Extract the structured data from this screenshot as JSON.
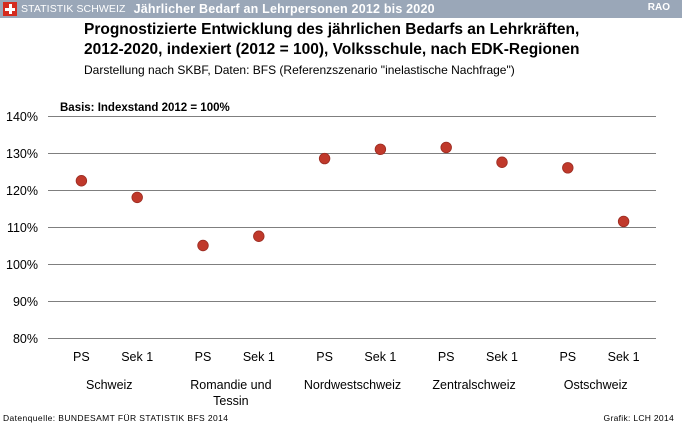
{
  "header": {
    "brand": "STATISTIK SCHWEIZ",
    "bar_title": "Jährlicher Bedarf an Lehrpersonen 2012 bis 2020",
    "code": "RAO",
    "flag_icon": "swiss-cross-icon",
    "bar_color": "#9aa7b8"
  },
  "footer": {
    "source": "Datenquelle: BUNDESAMT FÜR STATISTIK BFS 2014",
    "credit": "Grafik: LCH 2014"
  },
  "chart_data": {
    "type": "scatter",
    "title_lines": [
      "Prognostizierte Entwicklung des jährlichen Bedarfs an Lehrkräften,",
      "2012-2020, indexiert (2012 = 100), Volksschule, nach EDK-Regionen"
    ],
    "subtitle": "Darstellung nach SKBF, Daten: BFS (Referenzszenario  \"inelastische Nachfrage\")",
    "annotation": "Basis: Indexstand 2012 = 100%",
    "categories": [
      "PS",
      "Sek 1",
      "PS",
      "Sek 1",
      "PS",
      "Sek 1",
      "PS",
      "Sek 1",
      "PS",
      "Sek 1"
    ],
    "groups": [
      {
        "label_lines": [
          "Schweiz"
        ]
      },
      {
        "label_lines": [
          "Romandie und",
          "Tessin"
        ]
      },
      {
        "label_lines": [
          "Nordwestschweiz"
        ]
      },
      {
        "label_lines": [
          "Zentralschweiz"
        ]
      },
      {
        "label_lines": [
          "Ostschweiz"
        ]
      }
    ],
    "values": [
      122.5,
      118,
      105,
      107.5,
      128.5,
      131,
      131.5,
      127.5,
      126,
      111.5
    ],
    "y_ticks": [
      80,
      90,
      100,
      110,
      120,
      130,
      140
    ],
    "y_tick_labels": [
      "80%",
      "90%",
      "100%",
      "110%",
      "120%",
      "130%",
      "140%"
    ],
    "ylim": [
      80,
      140
    ],
    "grid": true,
    "marker_color": "#c0392b",
    "marker_edge_color": "#9b2c22",
    "grid_color": "#7f7f7f"
  }
}
